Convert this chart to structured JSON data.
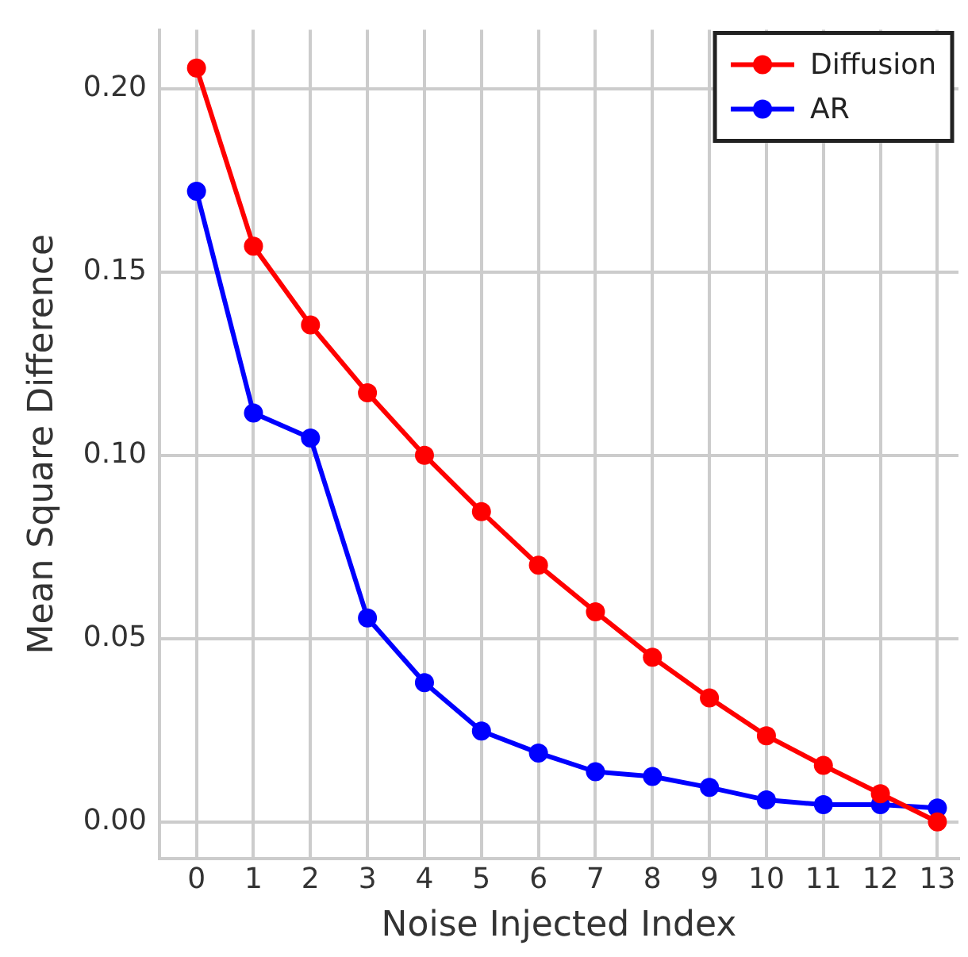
{
  "chart_data": {
    "type": "line",
    "xlabel": "Noise Injected Index",
    "ylabel": "Mean Square Difference",
    "x": [
      0,
      1,
      2,
      3,
      4,
      5,
      6,
      7,
      8,
      9,
      10,
      11,
      12,
      13
    ],
    "series": [
      {
        "name": "Diffusion",
        "color": "#ff0000",
        "values": [
          0.2056,
          0.157,
          0.1355,
          0.117,
          0.1,
          0.0846,
          0.07,
          0.0573,
          0.0449,
          0.0338,
          0.0235,
          0.0154,
          0.0077,
          0.0
        ]
      },
      {
        "name": "AR",
        "color": "#0000ff",
        "values": [
          0.172,
          0.1115,
          0.1047,
          0.0556,
          0.038,
          0.0248,
          0.0188,
          0.0137,
          0.0124,
          0.0094,
          0.006,
          0.0047,
          0.0047,
          0.0038
        ]
      }
    ],
    "xlim": [
      -0.65,
      13.37
    ],
    "xticks": [
      0,
      1,
      2,
      3,
      4,
      5,
      6,
      7,
      8,
      9,
      10,
      11,
      12,
      13
    ],
    "ylim": [
      -0.01,
      0.216
    ],
    "yticks": [
      {
        "value": 0,
        "label": "0.00"
      },
      {
        "value": 0.05,
        "label": "0.05"
      },
      {
        "value": 0.1,
        "label": "0.10"
      },
      {
        "value": 0.15,
        "label": "0.15"
      },
      {
        "value": 0.2,
        "label": "0.20"
      }
    ],
    "grid": true,
    "legend": "top right",
    "marker": "circle",
    "line_style": "solid"
  }
}
